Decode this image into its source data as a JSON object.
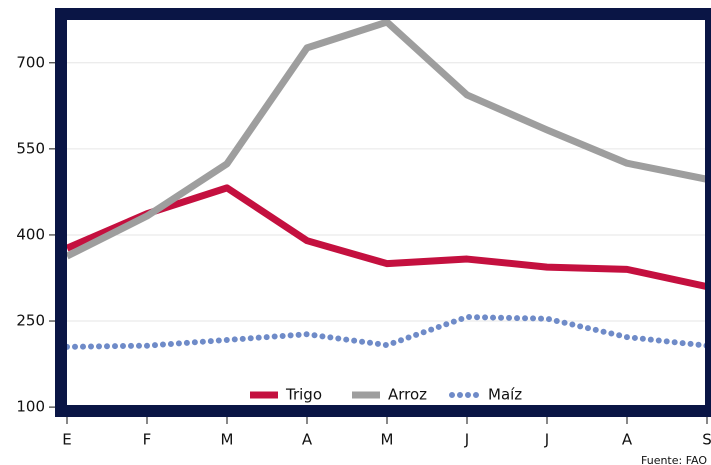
{
  "chart_data": {
    "type": "line",
    "categories": [
      "E",
      "F",
      "M",
      "A",
      "M",
      "J",
      "J",
      "A",
      "S"
    ],
    "series": [
      {
        "name": "Trigo",
        "color": "#c4103f",
        "style": "solid",
        "values": [
          377,
          437,
          482,
          390,
          350,
          358,
          344,
          340,
          310
        ]
      },
      {
        "name": "Arroz",
        "color": "#9e9e9e",
        "style": "solid",
        "values": [
          363,
          433,
          524,
          726,
          771,
          644,
          583,
          525,
          497
        ]
      },
      {
        "name": "Maíz",
        "color": "#6f8bc8",
        "style": "dotted",
        "values": [
          205,
          207,
          217,
          227,
          208,
          257,
          254,
          222,
          207
        ]
      }
    ],
    "ylim": [
      81,
      792
    ],
    "yticks": [
      100,
      250,
      400,
      550,
      700
    ],
    "grid": true,
    "legend": "bottom",
    "source": "Fuente: FAO"
  }
}
